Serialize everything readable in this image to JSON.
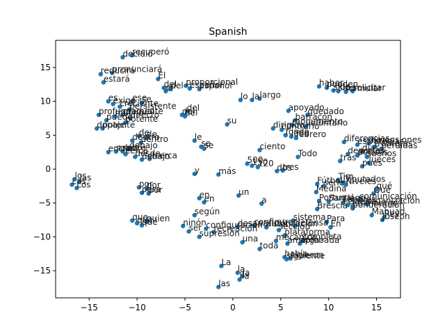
{
  "chart_data": {
    "type": "scatter",
    "title": "Spanish",
    "xlabel": "",
    "ylabel": "",
    "xlim": [
      -18.5,
      17.5
    ],
    "ylim": [
      -19,
      19
    ],
    "xticks": [
      -15,
      -10,
      -5,
      0,
      5,
      10,
      15
    ],
    "yticks": [
      -15,
      -10,
      -5,
      0,
      5,
      10,
      15
    ],
    "grid": false,
    "legend": "none",
    "point_color": "#1f77b4",
    "points": [
      {
        "x": -11.5,
        "y": 16.5,
        "label": "decidió"
      },
      {
        "x": -10.5,
        "y": 16.8,
        "label": "recuperó"
      },
      {
        "x": -13.8,
        "y": 14.0,
        "label": "reducirá"
      },
      {
        "x": -12.6,
        "y": 14.2,
        "label": "pronunciará"
      },
      {
        "x": -13.5,
        "y": 12.8,
        "label": "estará"
      },
      {
        "x": -7.8,
        "y": 13.3,
        "label": "El"
      },
      {
        "x": -7.2,
        "y": 12.0,
        "label": "del"
      },
      {
        "x": -7.0,
        "y": 11.5,
        "label": "el"
      },
      {
        "x": -6.5,
        "y": 11.8,
        "label": "del"
      },
      {
        "x": -4.9,
        "y": 12.3,
        "label": "proporcional"
      },
      {
        "x": -4.5,
        "y": 11.9,
        "label": "español"
      },
      {
        "x": -3.5,
        "y": 11.8,
        "label": "español"
      },
      {
        "x": -13.0,
        "y": 10.0,
        "label": "es"
      },
      {
        "x": -12.5,
        "y": 9.6,
        "label": "exige"
      },
      {
        "x": -10.5,
        "y": 10.0,
        "label": "ese"
      },
      {
        "x": -9.5,
        "y": 9.8,
        "label": "se"
      },
      {
        "x": -11.8,
        "y": 9.2,
        "label": "creciente"
      },
      {
        "x": -10.8,
        "y": 8.8,
        "label": "persistente"
      },
      {
        "x": -14.0,
        "y": 8.0,
        "label": "profundamente"
      },
      {
        "x": -12.3,
        "y": 7.8,
        "label": "mucho"
      },
      {
        "x": -11.5,
        "y": 8.0,
        "label": "gradual"
      },
      {
        "x": -10.7,
        "y": 7.5,
        "label": "directo"
      },
      {
        "x": -13.2,
        "y": 7.2,
        "label": "puede"
      },
      {
        "x": -11.2,
        "y": 6.9,
        "label": "potente"
      },
      {
        "x": -13.6,
        "y": 6.0,
        "label": "potente"
      },
      {
        "x": -14.2,
        "y": 6.0,
        "label": "dopaje"
      },
      {
        "x": -5.3,
        "y": 8.0,
        "label": "del"
      },
      {
        "x": -4.8,
        "y": 8.5,
        "label": "del"
      },
      {
        "x": -5.0,
        "y": 7.8,
        "label": "del"
      },
      {
        "x": 0.8,
        "y": 10.2,
        "label": "lo"
      },
      {
        "x": 2.0,
        "y": 10.2,
        "label": "la"
      },
      {
        "x": 2.8,
        "y": 10.4,
        "label": "largo"
      },
      {
        "x": 9.0,
        "y": 12.2,
        "label": "haber"
      },
      {
        "x": 9.8,
        "y": 12.0,
        "label": "pueden"
      },
      {
        "x": 10.5,
        "y": 11.6,
        "label": "sido"
      },
      {
        "x": 11.0,
        "y": 11.5,
        "label": "sido"
      },
      {
        "x": 11.8,
        "y": 11.4,
        "label": "formular"
      },
      {
        "x": 12.5,
        "y": 11.5,
        "label": "solicitar"
      },
      {
        "x": 5.8,
        "y": 8.6,
        "label": "apoyado"
      },
      {
        "x": 7.8,
        "y": 8.0,
        "label": "quedado"
      },
      {
        "x": 6.5,
        "y": 7.2,
        "label": "barracón"
      },
      {
        "x": 6.2,
        "y": 6.5,
        "label": "monumento"
      },
      {
        "x": 7.6,
        "y": 6.3,
        "label": "voluntario"
      },
      {
        "x": 4.2,
        "y": 6.0,
        "label": "dirigido"
      },
      {
        "x": 5.1,
        "y": 5.8,
        "label": "contrario"
      },
      {
        "x": -0.6,
        "y": 6.6,
        "label": "su"
      },
      {
        "x": -9.8,
        "y": 4.9,
        "label": "de"
      },
      {
        "x": -9.0,
        "y": 4.6,
        "label": "de"
      },
      {
        "x": -10.5,
        "y": 4.2,
        "label": "dentro"
      },
      {
        "x": -9.6,
        "y": 3.9,
        "label": "dentro"
      },
      {
        "x": -10.8,
        "y": 3.0,
        "label": "debajo"
      },
      {
        "x": -11.5,
        "y": 2.6,
        "label": "sobre"
      },
      {
        "x": -12.2,
        "y": 2.6,
        "label": "sobre"
      },
      {
        "x": -13.0,
        "y": 2.5,
        "label": "entre"
      },
      {
        "x": -11.2,
        "y": 2.2,
        "label": "cerca"
      },
      {
        "x": -10.2,
        "y": 1.8,
        "label": "desde"
      },
      {
        "x": -9.5,
        "y": 1.4,
        "label": "debajo"
      },
      {
        "x": -8.7,
        "y": 1.5,
        "label": "acerca"
      },
      {
        "x": -4.0,
        "y": 4.2,
        "label": "le"
      },
      {
        "x": -3.3,
        "y": 3.3,
        "label": "se"
      },
      {
        "x": -3.0,
        "y": 3.0,
        "label": "se"
      },
      {
        "x": 2.8,
        "y": 2.8,
        "label": "ciento"
      },
      {
        "x": 1.5,
        "y": 0.8,
        "label": "500"
      },
      {
        "x": 2.0,
        "y": 0.5,
        "label": "150"
      },
      {
        "x": 2.6,
        "y": 0.3,
        "label": "120"
      },
      {
        "x": 5.5,
        "y": 5.0,
        "label": "fondo"
      },
      {
        "x": 6.1,
        "y": 4.8,
        "label": "lado"
      },
      {
        "x": 6.6,
        "y": 4.6,
        "label": "febrero"
      },
      {
        "x": 6.8,
        "y": 1.8,
        "label": "Todo"
      },
      {
        "x": 4.6,
        "y": -0.3,
        "label": "dos"
      },
      {
        "x": 5.2,
        "y": -0.2,
        "label": "tres"
      },
      {
        "x": -4.0,
        "y": -0.7,
        "label": "y"
      },
      {
        "x": -1.5,
        "y": -0.8,
        "label": "más"
      },
      {
        "x": -16.5,
        "y": -1.5,
        "label": "los"
      },
      {
        "x": -16.0,
        "y": -1.8,
        "label": "las"
      },
      {
        "x": -16.8,
        "y": -2.3,
        "label": "Las"
      },
      {
        "x": -16.3,
        "y": -2.8,
        "label": "Los"
      },
      {
        "x": -9.8,
        "y": -2.7,
        "label": "por"
      },
      {
        "x": -9.0,
        "y": -2.9,
        "label": "por"
      },
      {
        "x": -9.5,
        "y": -3.5,
        "label": "para"
      },
      {
        "x": -8.8,
        "y": -3.6,
        "label": "por"
      },
      {
        "x": -3.5,
        "y": -4.3,
        "label": "en"
      },
      {
        "x": -3.0,
        "y": -4.9,
        "label": "en"
      },
      {
        "x": 0.6,
        "y": -3.9,
        "label": "un"
      },
      {
        "x": 3.0,
        "y": -5.1,
        "label": "a"
      },
      {
        "x": -4.0,
        "y": -6.8,
        "label": "según"
      },
      {
        "x": -10.5,
        "y": -7.6,
        "label": "que"
      },
      {
        "x": -10.0,
        "y": -8.0,
        "label": "que"
      },
      {
        "x": -9.5,
        "y": -8.3,
        "label": "qué"
      },
      {
        "x": -9.0,
        "y": -7.8,
        "label": "quien"
      },
      {
        "x": -5.2,
        "y": -8.4,
        "label": "ninón"
      },
      {
        "x": -4.6,
        "y": -9.2,
        "label": "ser"
      },
      {
        "x": -2.8,
        "y": -8.8,
        "label": "configuración"
      },
      {
        "x": -2.0,
        "y": -9.3,
        "label": "recreación"
      },
      {
        "x": -3.5,
        "y": -10.0,
        "label": "supresión"
      },
      {
        "x": 0.5,
        "y": -8.5,
        "label": "desaparición"
      },
      {
        "x": 2.2,
        "y": -8.3,
        "label": "configurar"
      },
      {
        "x": 3.5,
        "y": -8.6,
        "label": "autorización"
      },
      {
        "x": 1.0,
        "y": -10.8,
        "label": "una"
      },
      {
        "x": 2.8,
        "y": -11.8,
        "label": "toda"
      },
      {
        "x": 6.3,
        "y": -7.6,
        "label": "sistema"
      },
      {
        "x": 6.5,
        "y": -8.4,
        "label": "defensa"
      },
      {
        "x": 4.8,
        "y": -9.0,
        "label": "sección"
      },
      {
        "x": 5.4,
        "y": -9.8,
        "label": "plataforma"
      },
      {
        "x": 4.5,
        "y": -10.6,
        "label": "mecánica"
      },
      {
        "x": 5.7,
        "y": -11.0,
        "label": "amarga"
      },
      {
        "x": 7.3,
        "y": -10.5,
        "label": "completa"
      },
      {
        "x": 7.0,
        "y": -11.0,
        "label": "aprobada"
      },
      {
        "x": 5.4,
        "y": -13.0,
        "label": "había"
      },
      {
        "x": 5.6,
        "y": -13.3,
        "label": "siguiente"
      },
      {
        "x": 6.0,
        "y": -13.2,
        "label": "sigieron"
      },
      {
        "x": -1.2,
        "y": -14.3,
        "label": "La"
      },
      {
        "x": 0.5,
        "y": -15.3,
        "label": "la"
      },
      {
        "x": 1.0,
        "y": -15.8,
        "label": "la"
      },
      {
        "x": 0.7,
        "y": -16.3,
        "label": "lla"
      },
      {
        "x": -1.5,
        "y": -17.4,
        "label": "las"
      },
      {
        "x": 8.8,
        "y": -2.2,
        "label": "Fútbol"
      },
      {
        "x": 11.0,
        "y": -1.6,
        "label": "Tim"
      },
      {
        "x": 11.5,
        "y": -2.0,
        "label": "Diputados"
      },
      {
        "x": 11.8,
        "y": -2.3,
        "label": "Niveles"
      },
      {
        "x": 9.5,
        "y": -2.5,
        "label": "serie"
      },
      {
        "x": 8.7,
        "y": -3.4,
        "label": "Medina"
      },
      {
        "x": 9.0,
        "y": -4.7,
        "label": "Portugal"
      },
      {
        "x": 10.0,
        "y": -4.8,
        "label": "Santiago"
      },
      {
        "x": 11.5,
        "y": -5.0,
        "label": "Londres"
      },
      {
        "x": 12.0,
        "y": -5.3,
        "label": "Guerra"
      },
      {
        "x": 12.5,
        "y": -5.5,
        "label": "Edimburgo"
      },
      {
        "x": 8.8,
        "y": -5.9,
        "label": "Brescia"
      },
      {
        "x": 15.0,
        "y": -3.0,
        "label": "qué"
      },
      {
        "x": 14.7,
        "y": -3.6,
        "label": "Qué"
      },
      {
        "x": 13.2,
        "y": -4.5,
        "label": "comunicación"
      },
      {
        "x": 14.0,
        "y": -5.2,
        "label": "organización"
      },
      {
        "x": 12.5,
        "y": -5.8,
        "label": "ponderación"
      },
      {
        "x": 14.5,
        "y": -6.8,
        "label": "Mahuad"
      },
      {
        "x": 15.6,
        "y": -7.5,
        "label": "Joseph"
      },
      {
        "x": 15.8,
        "y": -7.1,
        "label": "Rey"
      },
      {
        "x": 9.8,
        "y": -7.8,
        "label": "Para"
      },
      {
        "x": 10.2,
        "y": -8.6,
        "label": "En"
      },
      {
        "x": 11.6,
        "y": 4.0,
        "label": "diferencias"
      },
      {
        "x": 13.0,
        "y": 3.6,
        "label": "estrategias"
      },
      {
        "x": 14.2,
        "y": 3.8,
        "label": "dimensiones"
      },
      {
        "x": 14.8,
        "y": 3.3,
        "label": "fronteras"
      },
      {
        "x": 15.5,
        "y": 3.0,
        "label": "pérdidas"
      },
      {
        "x": 13.5,
        "y": 2.6,
        "label": "días"
      },
      {
        "x": 12.0,
        "y": 2.2,
        "label": "deportes"
      },
      {
        "x": 13.0,
        "y": 2.0,
        "label": "dolores"
      },
      {
        "x": 14.0,
        "y": 1.8,
        "label": "sueños"
      },
      {
        "x": 11.2,
        "y": 1.2,
        "label": "tras"
      },
      {
        "x": 14.2,
        "y": 0.9,
        "label": "lueces"
      },
      {
        "x": 13.5,
        "y": 0.4,
        "label": "pues"
      }
    ],
    "labels_shown": [
      "decidió",
      "recuperó",
      "reducirá",
      "pronunciará",
      "estará",
      "El",
      "el",
      "del",
      "proporcional",
      "español",
      "es",
      "exige",
      "ese",
      "se",
      "creciente",
      "persistente",
      "profundamente",
      "mucho",
      "gradual",
      "directo",
      "puede",
      "potente",
      "dopaje",
      "lo",
      "la",
      "largo",
      "haber",
      "pueden",
      "sido",
      "formular",
      "solicitar",
      "apoyado",
      "quedado",
      "barracón",
      "monumento",
      "voluntario",
      "dirigido",
      "contrario",
      "su",
      "de",
      "dentro",
      "debajo",
      "sobre",
      "entre",
      "cerca",
      "desde",
      "acerca",
      "le",
      "ciento",
      "500",
      "150",
      "120",
      "fondo",
      "lado",
      "febrero",
      "Todo",
      "dos",
      "tres",
      "y",
      "más",
      "los",
      "las",
      "Las",
      "Los",
      "por",
      "para",
      "en",
      "un",
      "a",
      "según",
      "que",
      "qué",
      "quien",
      "ninón",
      "ser",
      "configuración",
      "recreación",
      "supresión",
      "desaparición",
      "configurar",
      "autorización",
      "una",
      "toda",
      "sistema",
      "defensa",
      "sección",
      "plataforma",
      "mecánica",
      "amarga",
      "completa",
      "aprobada",
      "había",
      "siguiente",
      "sigieron",
      "La",
      "lla",
      "Fútbol",
      "Tim",
      "Diputados",
      "Niveles",
      "serie",
      "Medina",
      "Portugal",
      "Santiago",
      "Londres",
      "Guerra",
      "Edimburgo",
      "Brescia",
      "Qué",
      "comunicación",
      "organización",
      "ponderación",
      "Mahuad",
      "Joseph",
      "Rey",
      "Para",
      "En",
      "diferencias",
      "estrategias",
      "dimensiones",
      "fronteras",
      "pérdidas",
      "días",
      "deportes",
      "dolores",
      "sueños",
      "tras",
      "lueces",
      "pues"
    ]
  }
}
